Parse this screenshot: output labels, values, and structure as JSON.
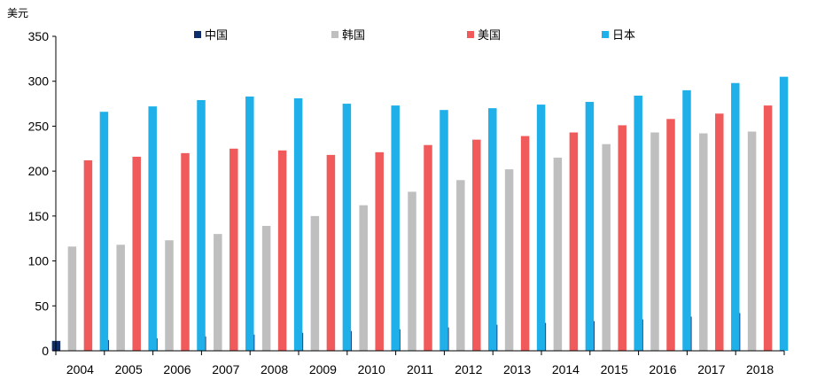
{
  "chart_data": {
    "type": "bar",
    "unit_label": "美元",
    "categories": [
      "2004",
      "2005",
      "2006",
      "2007",
      "2008",
      "2009",
      "2010",
      "2011",
      "2012",
      "2013",
      "2014",
      "2015",
      "2016",
      "2017",
      "2018"
    ],
    "series": [
      {
        "name": "中国",
        "color": "#0f2d6b",
        "values": [
          11,
          12,
          14,
          16,
          18,
          20,
          22,
          24,
          26,
          29,
          31,
          33,
          35,
          38,
          42
        ]
      },
      {
        "name": "韩国",
        "color": "#bfbfbf",
        "values": [
          116,
          118,
          123,
          130,
          139,
          150,
          162,
          177,
          190,
          202,
          215,
          230,
          243,
          242,
          244
        ]
      },
      {
        "name": "美国",
        "color": "#f05a5a",
        "values": [
          212,
          216,
          220,
          225,
          223,
          218,
          221,
          229,
          235,
          239,
          243,
          251,
          258,
          264,
          273
        ]
      },
      {
        "name": "日本",
        "color": "#1fb0ea",
        "values": [
          266,
          272,
          279,
          283,
          281,
          275,
          273,
          268,
          270,
          274,
          277,
          284,
          290,
          298,
          305
        ]
      }
    ],
    "ylim": [
      0,
      350
    ],
    "yticks": [
      0,
      50,
      100,
      150,
      200,
      250,
      300,
      350
    ],
    "grid": false,
    "legend_position": "top"
  }
}
